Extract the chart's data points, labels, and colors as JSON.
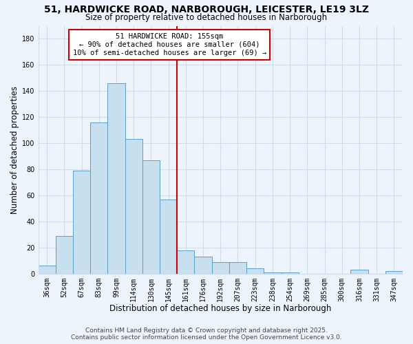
{
  "title": "51, HARDWICKE ROAD, NARBOROUGH, LEICESTER, LE19 3LZ",
  "subtitle": "Size of property relative to detached houses in Narborough",
  "xlabel": "Distribution of detached houses by size in Narborough",
  "ylabel": "Number of detached properties",
  "bar_labels": [
    "36sqm",
    "52sqm",
    "67sqm",
    "83sqm",
    "99sqm",
    "114sqm",
    "130sqm",
    "145sqm",
    "161sqm",
    "176sqm",
    "192sqm",
    "207sqm",
    "223sqm",
    "238sqm",
    "254sqm",
    "269sqm",
    "285sqm",
    "300sqm",
    "316sqm",
    "331sqm",
    "347sqm"
  ],
  "bar_values": [
    6,
    29,
    79,
    116,
    146,
    103,
    87,
    57,
    18,
    13,
    9,
    9,
    4,
    1,
    1,
    0,
    0,
    0,
    3,
    0,
    2
  ],
  "bar_color": "#c8dff0",
  "bar_edge_color": "#5a9ec9",
  "vline_color": "#cc0000",
  "ylim": [
    0,
    190
  ],
  "yticks": [
    0,
    20,
    40,
    60,
    80,
    100,
    120,
    140,
    160,
    180
  ],
  "annotation_title": "51 HARDWICKE ROAD: 155sqm",
  "annotation_line1": "← 90% of detached houses are smaller (604)",
  "annotation_line2": "10% of semi-detached houses are larger (69) →",
  "footer1": "Contains HM Land Registry data © Crown copyright and database right 2025.",
  "footer2": "Contains public sector information licensed under the Open Government Licence v3.0.",
  "bg_color": "#eef4fb",
  "grid_color": "#d0dde8",
  "title_fontsize": 10,
  "subtitle_fontsize": 8.5,
  "axis_label_fontsize": 8.5,
  "tick_fontsize": 7,
  "footer_fontsize": 6.5
}
